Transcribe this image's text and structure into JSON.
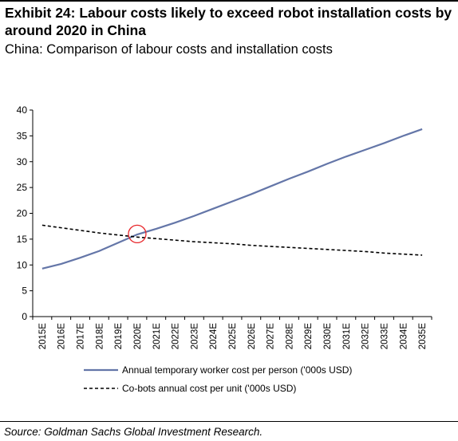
{
  "header": {
    "title": "Exhibit 24: Labour costs likely to exceed robot installation costs by around 2020 in China",
    "subtitle": "China: Comparison of labour costs and installation costs"
  },
  "footer": {
    "source": "Source: Goldman Sachs Global Investment Research."
  },
  "colors": {
    "series_worker": "#6476a8",
    "series_cobot": "#000000",
    "highlight": "#e8262b",
    "axis": "#000000"
  },
  "chart_data": {
    "type": "line",
    "x": [
      "2015E",
      "2016E",
      "2017E",
      "2018E",
      "2019E",
      "2020E",
      "2021E",
      "2022E",
      "2023E",
      "2024E",
      "2025E",
      "2026E",
      "2027E",
      "2028E",
      "2029E",
      "2030E",
      "2031E",
      "2032E",
      "2033E",
      "2034E",
      "2035E"
    ],
    "ylim": [
      0,
      40
    ],
    "yticks": [
      0,
      5,
      10,
      15,
      20,
      25,
      30,
      35,
      40
    ],
    "grid": false,
    "legend_position": "bottom",
    "series": [
      {
        "name": "Annual temporary worker cost per person ('000s USD)",
        "style": "solid",
        "values": [
          9.3,
          10.2,
          11.4,
          12.7,
          14.3,
          15.9,
          17.0,
          18.2,
          19.5,
          20.9,
          22.3,
          23.7,
          25.2,
          26.7,
          28.1,
          29.6,
          31.0,
          32.3,
          33.6,
          35.0,
          36.3
        ]
      },
      {
        "name": "Co-bots annual cost per unit ('000s USD)",
        "style": "dashed",
        "values": [
          17.7,
          17.2,
          16.7,
          16.2,
          15.8,
          15.4,
          15.1,
          14.8,
          14.5,
          14.3,
          14.1,
          13.8,
          13.6,
          13.4,
          13.2,
          13.0,
          12.8,
          12.6,
          12.3,
          12.1,
          11.9
        ]
      }
    ],
    "annotation": {
      "type": "circle",
      "x": "2020E",
      "y": 16
    }
  }
}
